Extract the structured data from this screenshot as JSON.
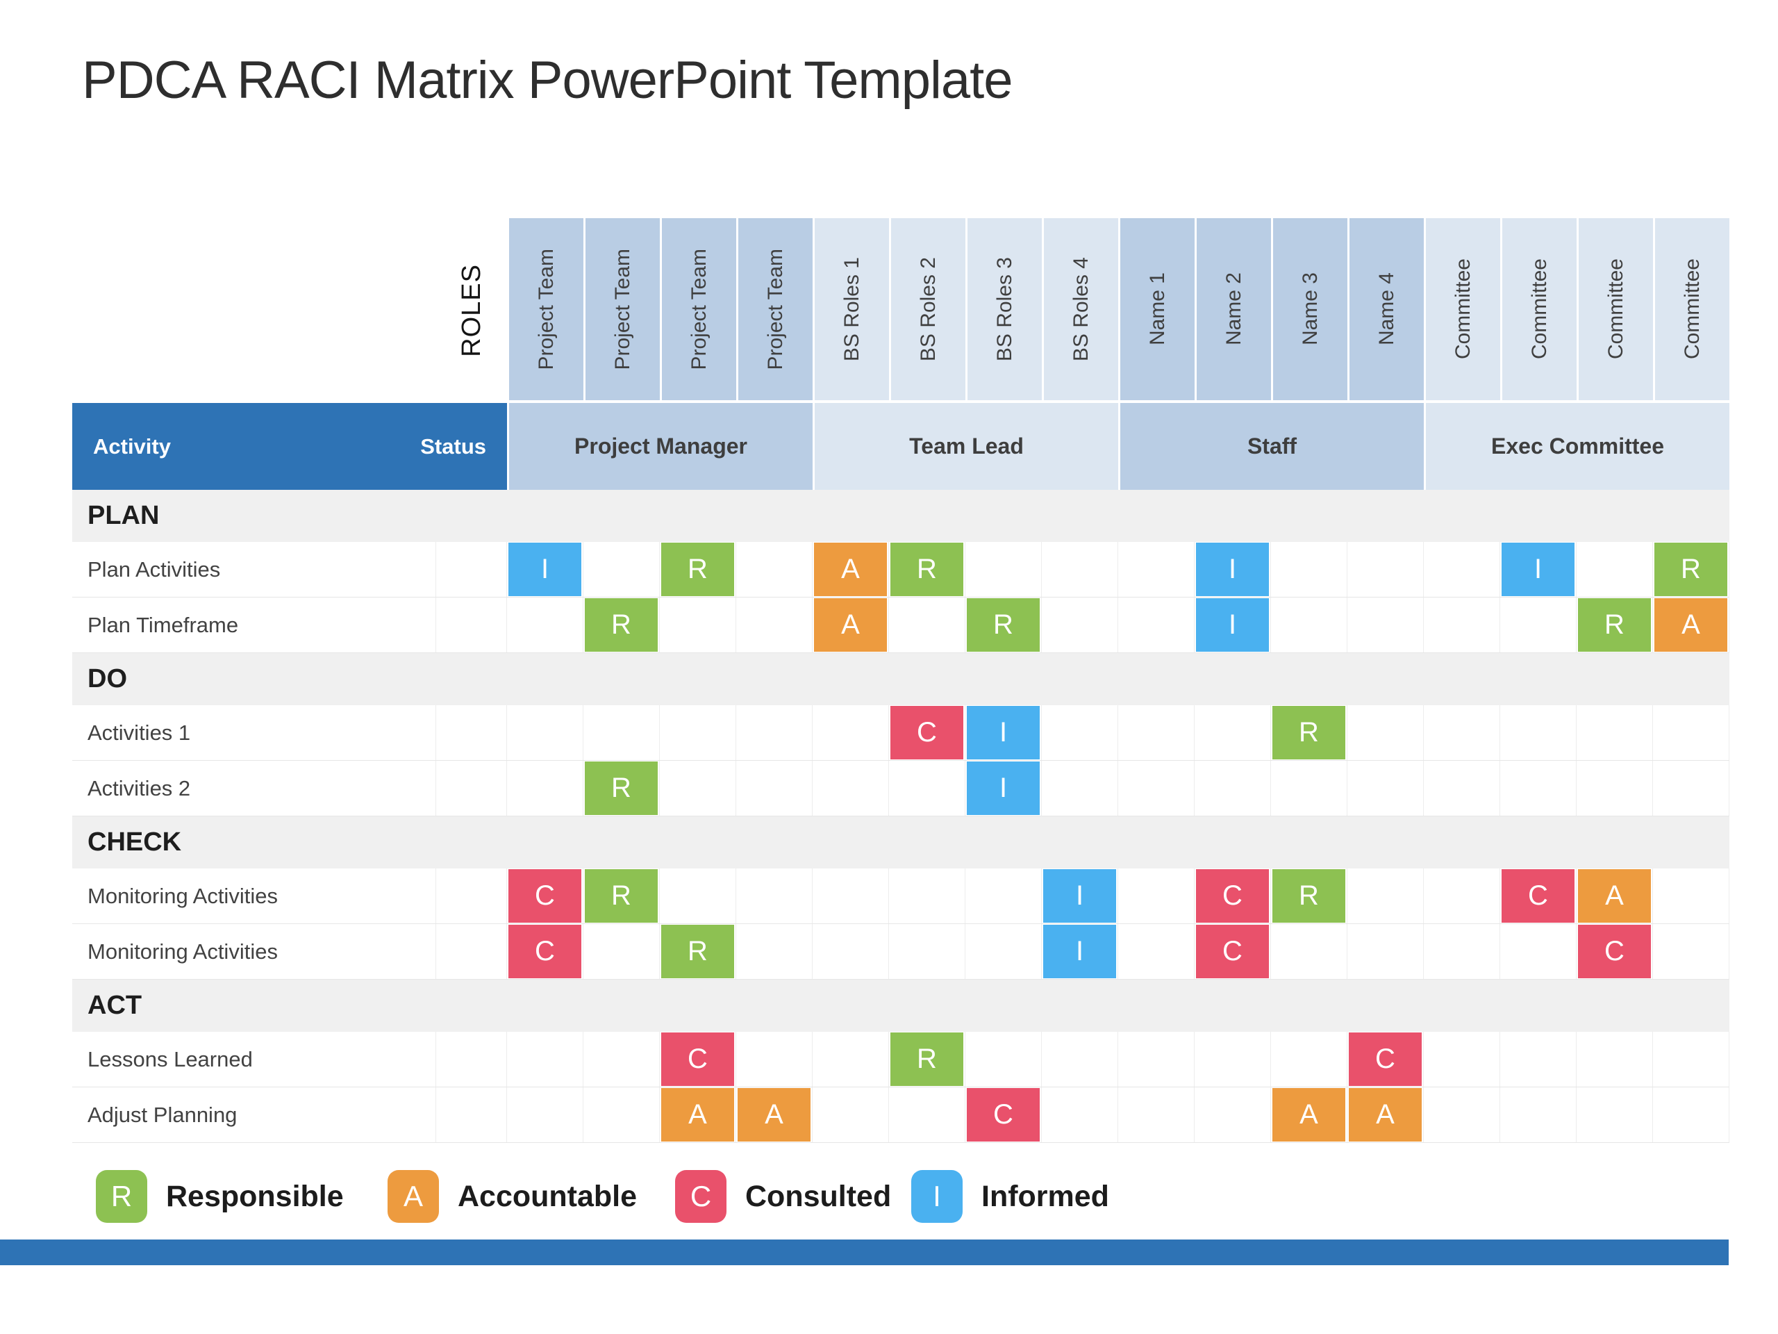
{
  "title": "PDCA RACI Matrix PowerPoint Template",
  "colors": {
    "header_blue": "#2E73B5",
    "group_medium": "#B9CDE4",
    "group_light": "#DCE6F1",
    "section_bg": "#F0F0F0",
    "accent_bar": "#2E73B5",
    "R": "#8DC152",
    "A": "#ED9B3F",
    "C": "#E9516B",
    "I": "#4AB1F0"
  },
  "table": {
    "roles_axis_label": "ROLES",
    "activity_header": "Activity",
    "status_header": "Status",
    "groups": [
      {
        "label": "Project Manager",
        "shade": "medium"
      },
      {
        "label": "Team Lead",
        "shade": "light"
      },
      {
        "label": "Staff",
        "shade": "medium"
      },
      {
        "label": "Exec Committee",
        "shade": "light"
      }
    ],
    "role_columns": [
      {
        "label": "Project Team",
        "group": 0
      },
      {
        "label": "Project Team",
        "group": 0
      },
      {
        "label": "Project Team",
        "group": 0
      },
      {
        "label": "Project Team",
        "group": 0
      },
      {
        "label": "BS Roles 1",
        "group": 1
      },
      {
        "label": "BS Roles 2",
        "group": 1
      },
      {
        "label": "BS Roles 3",
        "group": 1
      },
      {
        "label": "BS Roles 4",
        "group": 1
      },
      {
        "label": "Name 1",
        "group": 2
      },
      {
        "label": "Name 2",
        "group": 2
      },
      {
        "label": "Name 3",
        "group": 2
      },
      {
        "label": "Name 4",
        "group": 2
      },
      {
        "label": "Committee",
        "group": 3
      },
      {
        "label": "Committee",
        "group": 3
      },
      {
        "label": "Committee",
        "group": 3
      },
      {
        "label": "Committee",
        "group": 3
      }
    ],
    "sections": [
      {
        "label": "PLAN",
        "rows": [
          {
            "label": "Plan Activities",
            "cells": [
              {
                "col": 1,
                "type": "I"
              },
              {
                "col": 3,
                "type": "R"
              },
              {
                "col": 5,
                "type": "A"
              },
              {
                "col": 6,
                "type": "R"
              },
              {
                "col": 10,
                "type": "I"
              },
              {
                "col": 14,
                "type": "I"
              },
              {
                "col": 16,
                "type": "R"
              }
            ]
          },
          {
            "label": "Plan Timeframe",
            "cells": [
              {
                "col": 2,
                "type": "R"
              },
              {
                "col": 5,
                "type": "A"
              },
              {
                "col": 7,
                "type": "R"
              },
              {
                "col": 10,
                "type": "I"
              },
              {
                "col": 15,
                "type": "R"
              },
              {
                "col": 16,
                "type": "A"
              }
            ]
          }
        ]
      },
      {
        "label": "DO",
        "rows": [
          {
            "label": "Activities 1",
            "cells": [
              {
                "col": 6,
                "type": "C"
              },
              {
                "col": 7,
                "type": "I"
              },
              {
                "col": 11,
                "type": "R"
              }
            ]
          },
          {
            "label": "Activities 2",
            "cells": [
              {
                "col": 2,
                "type": "R"
              },
              {
                "col": 7,
                "type": "I"
              }
            ]
          }
        ]
      },
      {
        "label": "CHECK",
        "rows": [
          {
            "label": "Monitoring Activities",
            "cells": [
              {
                "col": 1,
                "type": "C"
              },
              {
                "col": 2,
                "type": "R"
              },
              {
                "col": 8,
                "type": "I"
              },
              {
                "col": 10,
                "type": "C"
              },
              {
                "col": 11,
                "type": "R"
              },
              {
                "col": 14,
                "type": "C"
              },
              {
                "col": 15,
                "type": "A"
              }
            ]
          },
          {
            "label": "Monitoring Activities",
            "cells": [
              {
                "col": 1,
                "type": "C"
              },
              {
                "col": 3,
                "type": "R"
              },
              {
                "col": 8,
                "type": "I"
              },
              {
                "col": 10,
                "type": "C"
              },
              {
                "col": 15,
                "type": "C"
              }
            ]
          }
        ]
      },
      {
        "label": "ACT",
        "rows": [
          {
            "label": "Lessons Learned",
            "cells": [
              {
                "col": 3,
                "type": "C"
              },
              {
                "col": 6,
                "type": "R"
              },
              {
                "col": 12,
                "type": "C"
              }
            ]
          },
          {
            "label": "Adjust Planning",
            "cells": [
              {
                "col": 3,
                "type": "A"
              },
              {
                "col": 4,
                "type": "A"
              },
              {
                "col": 7,
                "type": "C"
              },
              {
                "col": 11,
                "type": "A"
              },
              {
                "col": 12,
                "type": "A"
              }
            ]
          }
        ]
      }
    ]
  },
  "legend": [
    {
      "letter": "R",
      "label": "Responsible"
    },
    {
      "letter": "A",
      "label": "Accountable"
    },
    {
      "letter": "C",
      "label": "Consulted"
    },
    {
      "letter": "I",
      "label": "Informed"
    }
  ]
}
